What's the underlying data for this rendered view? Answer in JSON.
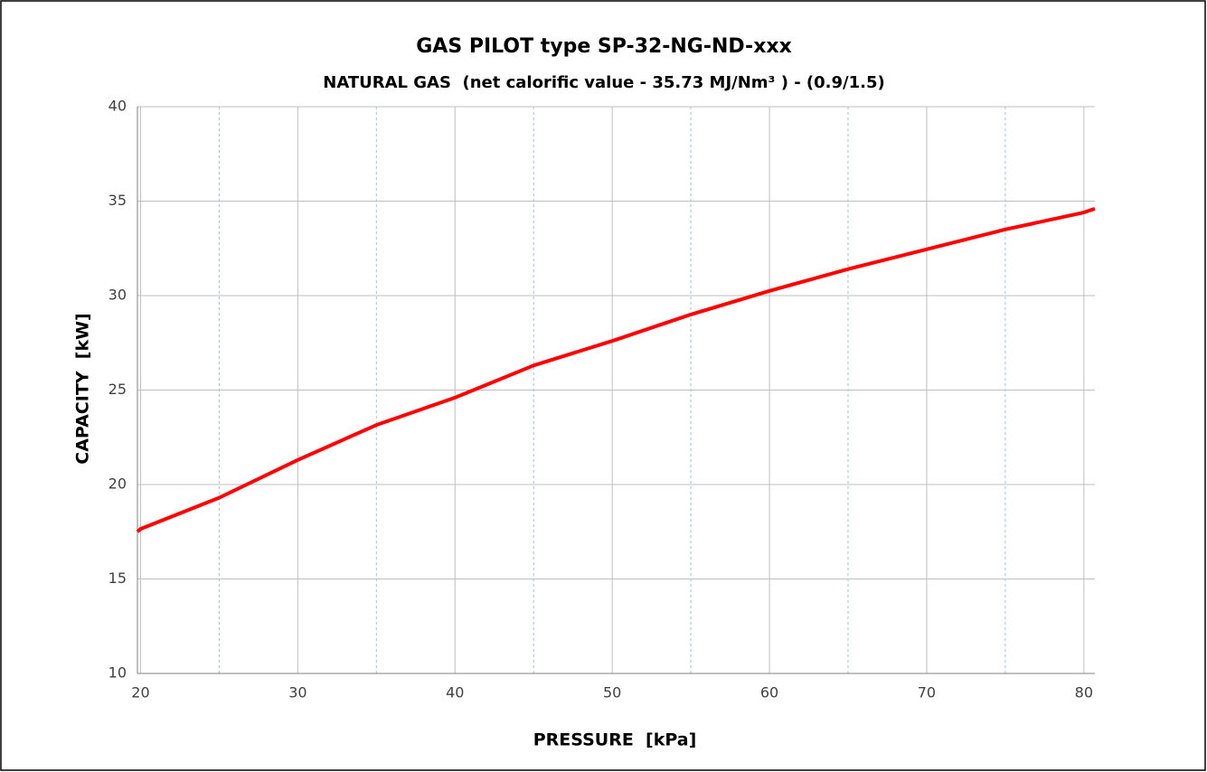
{
  "chart_data": {
    "type": "line",
    "title": "GAS PILOT type SP-32-NG-ND-xxx",
    "subtitle": "NATURAL GAS  (net calorific value - 35.73 MJ/Nm³ ) - (0.9/1.5)",
    "xlabel": "PRESSURE  [kPa]",
    "ylabel": "CAPACITY  [kW]",
    "x": [
      19.8,
      20,
      25,
      30,
      35,
      40,
      45,
      50,
      55,
      60,
      65,
      70,
      75,
      80,
      80.7
    ],
    "series": [
      {
        "name": "SP-32-NG-ND-xxx",
        "color": "#ff0000",
        "values": [
          17.5,
          17.65,
          19.3,
          21.3,
          23.15,
          24.6,
          26.3,
          27.6,
          29.0,
          30.25,
          31.4,
          32.45,
          33.5,
          34.4,
          34.6
        ]
      }
    ],
    "xlim": [
      19.8,
      80.7
    ],
    "xticks": [
      20,
      30,
      40,
      50,
      60,
      70,
      80
    ],
    "xminorticks": [
      25,
      35,
      45,
      55,
      65,
      75
    ],
    "ylim": [
      10,
      40
    ],
    "yticks": [
      10,
      15,
      20,
      25,
      30,
      35,
      40
    ],
    "grid": true
  }
}
